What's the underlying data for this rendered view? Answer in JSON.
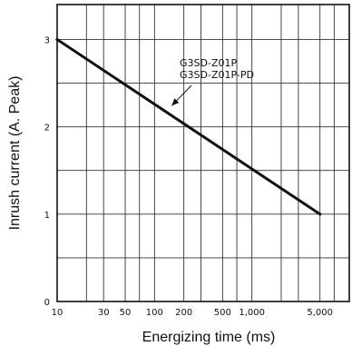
{
  "chart_data": {
    "type": "line",
    "title": "",
    "xlabel": "Energizing time (ms)",
    "ylabel": "Inrush current (A. Peak)",
    "x_scale": "log",
    "xlim": [
      10,
      10000
    ],
    "ylim": [
      0,
      3.4
    ],
    "x_tick_values": [
      10,
      30,
      50,
      100,
      200,
      500,
      1000,
      5000
    ],
    "x_tick_labels": [
      "10",
      "30",
      "50",
      "100",
      "200",
      "500",
      "1,000",
      "5,000"
    ],
    "x_grid_values": [
      20,
      30,
      50,
      70,
      100,
      200,
      300,
      500,
      700,
      1000,
      2000,
      3000,
      5000,
      7000
    ],
    "y_tick_values": [
      0,
      1,
      2,
      3
    ],
    "y_tick_labels": [
      "0",
      "1",
      "2",
      "3"
    ],
    "y_grid_values": [
      0.5,
      1,
      1.5,
      2,
      2.5,
      3
    ],
    "grid": true,
    "series": [
      {
        "name": "G3SD-Z01P\nG3SD-Z01P-PD",
        "x": [
          10,
          5000
        ],
        "y": [
          3,
          1
        ]
      }
    ],
    "annotation": {
      "lines": [
        "G3SD-Z01P",
        "G3SD-Z01P-PD"
      ],
      "points_to": {
        "x": 150,
        "y": 2.2
      }
    }
  }
}
